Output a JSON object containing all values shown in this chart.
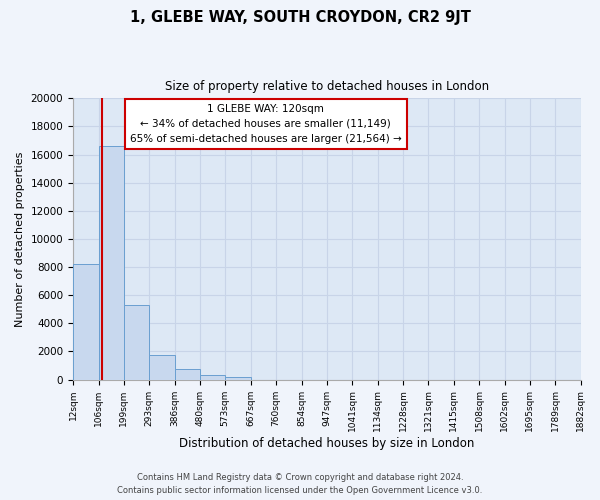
{
  "title": "1, GLEBE WAY, SOUTH CROYDON, CR2 9JT",
  "subtitle": "Size of property relative to detached houses in London",
  "xlabel": "Distribution of detached houses by size in London",
  "ylabel": "Number of detached properties",
  "bar_color": "#c8d8ee",
  "bar_edge_color": "#6a9fd0",
  "grid_color": "#c8d4e8",
  "background_color": "#dde8f5",
  "fig_background_color": "#f0f4fb",
  "bin_labels": [
    "12sqm",
    "106sqm",
    "199sqm",
    "293sqm",
    "386sqm",
    "480sqm",
    "573sqm",
    "667sqm",
    "760sqm",
    "854sqm",
    "947sqm",
    "1041sqm",
    "1134sqm",
    "1228sqm",
    "1321sqm",
    "1415sqm",
    "1508sqm",
    "1602sqm",
    "1695sqm",
    "1789sqm",
    "1882sqm"
  ],
  "bar_heights": [
    8200,
    16600,
    5300,
    1750,
    750,
    300,
    200,
    0,
    0,
    0,
    0,
    0,
    0,
    0,
    0,
    0,
    0,
    0,
    0,
    0
  ],
  "property_line_x": 120,
  "bin_edges": [
    12,
    106,
    199,
    293,
    386,
    480,
    573,
    667,
    760,
    854,
    947,
    1041,
    1134,
    1228,
    1321,
    1415,
    1508,
    1602,
    1695,
    1789,
    1882
  ],
  "ylim": [
    0,
    20000
  ],
  "yticks": [
    0,
    2000,
    4000,
    6000,
    8000,
    10000,
    12000,
    14000,
    16000,
    18000,
    20000
  ],
  "annotation_line1": "1 GLEBE WAY: 120sqm",
  "annotation_line2": "← 34% of detached houses are smaller (11,149)",
  "annotation_line3": "65% of semi-detached houses are larger (21,564) →",
  "annotation_box_color": "#ffffff",
  "annotation_box_edge_color": "#cc0000",
  "property_line_color": "#cc0000",
  "footer_line1": "Contains HM Land Registry data © Crown copyright and database right 2024.",
  "footer_line2": "Contains public sector information licensed under the Open Government Licence v3.0."
}
